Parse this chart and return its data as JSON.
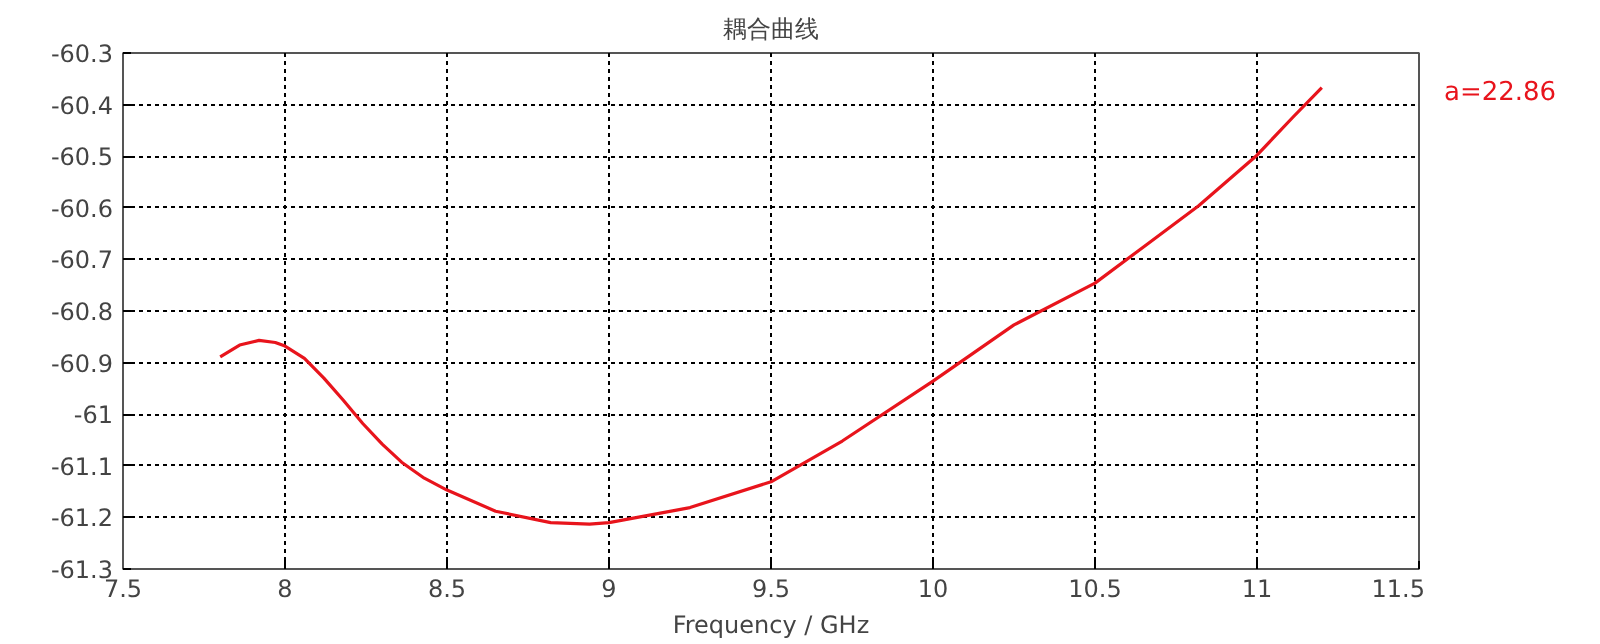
{
  "chart_data": {
    "type": "line",
    "title": "耦合曲线",
    "xlabel": "Frequency / GHz",
    "annotations": [
      "a=22.86"
    ],
    "xlim": [
      7.5,
      11.5
    ],
    "xticks": [
      7.5,
      8,
      8.5,
      9,
      9.5,
      10,
      10.5,
      11,
      11.5
    ],
    "ylim": [
      -61.3,
      -60.3
    ],
    "yticks": [
      -60.3,
      -60.4,
      -60.5,
      -60.6,
      -60.7,
      -60.8,
      -60.9,
      -61,
      -61.1,
      -61.2,
      -61.3
    ],
    "grid": true,
    "line_style": "solid",
    "series": [
      {
        "color": "#e8141c",
        "x": [
          7.8,
          7.86,
          7.92,
          7.97,
          8.0,
          8.06,
          8.12,
          8.18,
          8.24,
          8.3,
          8.36,
          8.43,
          8.5,
          8.65,
          8.82,
          8.94,
          9.0,
          9.25,
          9.5,
          9.72,
          10.0,
          10.25,
          10.5,
          10.66,
          10.82,
          11.0,
          11.11,
          11.2
        ],
        "values": [
          -60.889,
          -60.866,
          -60.857,
          -60.861,
          -60.868,
          -60.892,
          -60.93,
          -60.973,
          -61.018,
          -61.058,
          -61.093,
          -61.124,
          -61.147,
          -61.188,
          -61.21,
          -61.213,
          -61.21,
          -61.181,
          -61.131,
          -61.052,
          -60.936,
          -60.827,
          -60.746,
          -60.671,
          -60.596,
          -60.498,
          -60.425,
          -60.367
        ]
      }
    ]
  }
}
